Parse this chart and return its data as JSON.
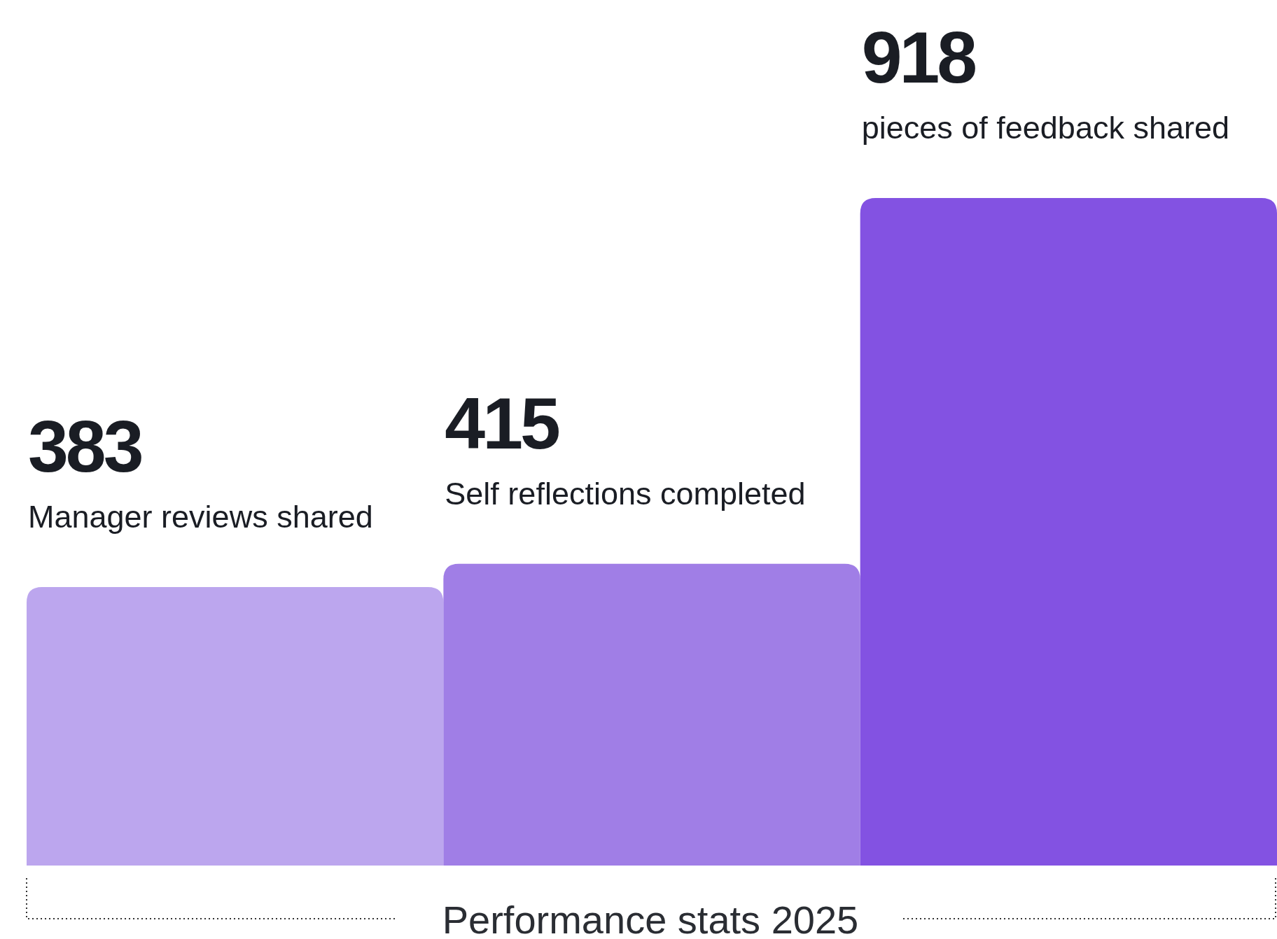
{
  "chart_data": {
    "type": "bar",
    "title": "Performance stats 2025",
    "categories": [
      "Manager reviews shared",
      "Self reflections completed",
      "pieces of feedback shared"
    ],
    "values": [
      383,
      415,
      918
    ],
    "colors": [
      "#bca6ee",
      "#a07ee6",
      "#8352e2"
    ],
    "data_labels": true
  }
}
